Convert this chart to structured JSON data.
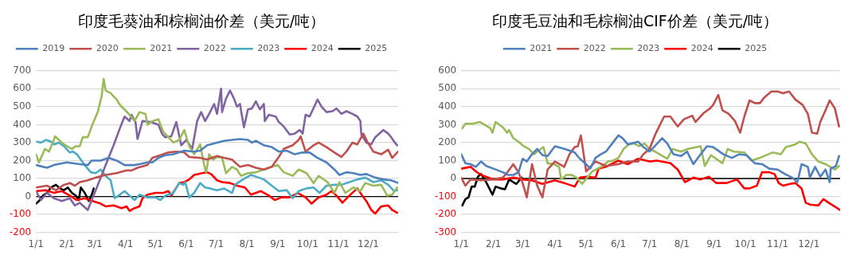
{
  "chart_data": [
    {
      "type": "line",
      "title": "印度毛葵油和棕榈油价差（美元/吨）",
      "legend": "top",
      "grid": "y",
      "xlim": [
        "--01-01",
        "--12-31"
      ],
      "ylim": [
        -200,
        700
      ],
      "yticks": [
        -200,
        -100,
        0,
        100,
        200,
        300,
        400,
        500,
        600,
        700
      ],
      "xticks": [
        {
          "value": "--01-01",
          "label": "1/1"
        },
        {
          "value": "--02-01",
          "label": "2/1"
        },
        {
          "value": "--03-01",
          "label": "3/1"
        },
        {
          "value": "--04-01",
          "label": "4/1"
        },
        {
          "value": "--05-01",
          "label": "5/1"
        },
        {
          "value": "--06-01",
          "label": "6/1"
        },
        {
          "value": "--07-01",
          "label": "7/1"
        },
        {
          "value": "--08-01",
          "label": "8/1"
        },
        {
          "value": "--09-01",
          "label": "9/1"
        },
        {
          "value": "--10-01",
          "label": "10/1"
        },
        {
          "value": "--11-01",
          "label": "11/1"
        },
        {
          "value": "--12-01",
          "label": "12/1"
        }
      ],
      "ref_lines": [
        {
          "axis": "y",
          "value": 0,
          "color": "#000000"
        }
      ],
      "series": [
        {
          "name": "2019",
          "color": "#4f81bd",
          "x": [
            "--01-01",
            "--01-12",
            "--01-19",
            "--02-01",
            "--02-14",
            "--02-22",
            "--02-26",
            "--03-07",
            "--03-15",
            "--03-20",
            "--03-23",
            "--03-31",
            "--04-10",
            "--04-15",
            "--04-23",
            "--04-28",
            "--05-04",
            "--05-11",
            "--05-19",
            "--05-30",
            "--06-09",
            "--06-15",
            "--06-22",
            "--07-02",
            "--07-09",
            "--07-17",
            "--07-25",
            "--08-02",
            "--08-06",
            "--08-10",
            "--08-18",
            "--08-26",
            "--09-02",
            "--09-10",
            "--09-18",
            "--09-26",
            "--10-03",
            "--10-11",
            "--10-20",
            "--10-28",
            "--11-02",
            "--11-09",
            "--11-16",
            "--11-23",
            "--11-29",
            "--12-08",
            "--12-16",
            "--12-24",
            "--12-31"
          ],
          "values": [
            175,
            160,
            175,
            190,
            180,
            175,
            200,
            200,
            215,
            205,
            200,
            175,
            175,
            180,
            190,
            190,
            215,
            230,
            235,
            255,
            250,
            255,
            285,
            300,
            310,
            315,
            320,
            315,
            300,
            310,
            285,
            275,
            250,
            255,
            235,
            245,
            245,
            215,
            190,
            150,
            120,
            135,
            130,
            120,
            125,
            105,
            95,
            90,
            75
          ]
        },
        {
          "name": "2020",
          "color": "#c0504d",
          "x": [
            "--01-01",
            "--01-12",
            "--01-21",
            "--01-29",
            "--02-04",
            "--02-09",
            "--02-14",
            "--02-22",
            "--03-02",
            "--03-12",
            "--03-23",
            "--04-02",
            "--04-07",
            "--04-13",
            "--04-23",
            "--04-28",
            "--05-06",
            "--05-14",
            "--05-22",
            "--05-30",
            "--06-04",
            "--06-15",
            "--06-22",
            "--07-02",
            "--07-09",
            "--07-17",
            "--07-25",
            "--08-02",
            "--08-10",
            "--08-18",
            "--08-26",
            "--09-02",
            "--09-07",
            "--09-16",
            "--09-22",
            "--09-24",
            "--09-29",
            "--10-07",
            "--10-12",
            "--10-20",
            "--10-28",
            "--11-04",
            "--11-09",
            "--11-15",
            "--11-20",
            "--11-24",
            "--11-26",
            "--11-30",
            "--12-06",
            "--12-14",
            "--12-21",
            "--12-25",
            "--12-31"
          ],
          "values": [
            50,
            60,
            35,
            65,
            75,
            60,
            80,
            90,
            105,
            120,
            130,
            145,
            145,
            160,
            175,
            215,
            230,
            245,
            250,
            245,
            220,
            215,
            205,
            225,
            215,
            205,
            165,
            175,
            160,
            150,
            165,
            220,
            265,
            285,
            315,
            335,
            250,
            285,
            300,
            275,
            245,
            220,
            250,
            300,
            290,
            330,
            350,
            305,
            250,
            235,
            260,
            215,
            250
          ]
        },
        {
          "name": "2021",
          "color": "#9bbb59",
          "x": [
            "--01-01",
            "--01-04",
            "--01-10",
            "--01-14",
            "--01-19",
            "--01-20",
            "--01-27",
            "--02-01",
            "--02-06",
            "--02-10",
            "--02-14",
            "--02-17",
            "--02-22",
            "--02-27",
            "--03-04",
            "--03-08",
            "--03-10",
            "--03-12",
            "--03-17",
            "--03-23",
            "--03-27",
            "--03-31",
            "--04-05",
            "--04-10",
            "--04-15",
            "--04-21",
            "--04-23",
            "--04-28",
            "--05-04",
            "--05-09",
            "--05-14",
            "--05-19",
            "--05-25",
            "--05-30",
            "--06-04",
            "--06-09",
            "--06-15",
            "--06-19",
            "--06-21",
            "--06-24",
            "--06-28",
            "--07-02",
            "--07-07",
            "--07-11",
            "--07-17",
            "--07-22",
            "--07-26",
            "--08-02",
            "--08-10",
            "--08-18",
            "--08-26",
            "--09-01",
            "--09-07",
            "--09-16",
            "--09-22",
            "--09-30",
            "--10-07",
            "--10-12",
            "--10-21",
            "--10-28",
            "--11-02",
            "--11-08",
            "--11-16",
            "--11-23",
            "--11-28",
            "--12-06",
            "--12-14",
            "--12-20",
            "--12-25",
            "--12-30"
          ],
          "values": [
            235,
            190,
            265,
            250,
            315,
            335,
            300,
            280,
            265,
            280,
            280,
            330,
            330,
            405,
            470,
            560,
            655,
            590,
            575,
            540,
            505,
            485,
            455,
            420,
            470,
            460,
            400,
            420,
            430,
            360,
            330,
            300,
            315,
            370,
            280,
            235,
            290,
            175,
            135,
            235,
            205,
            220,
            215,
            130,
            165,
            150,
            115,
            130,
            135,
            150,
            165,
            175,
            135,
            115,
            150,
            130,
            75,
            115,
            80,
            20,
            80,
            20,
            50,
            30,
            75,
            60,
            65,
            5,
            10,
            50
          ]
        },
        {
          "name": "2022",
          "color": "#8064a2",
          "x": [
            "--01-02",
            "--01-06",
            "--01-12",
            "--01-19",
            "--01-27",
            "--02-04",
            "--02-09",
            "--02-14",
            "--02-22",
            "--03-02",
            "--03-12",
            "--03-20",
            "--03-27",
            "--03-31",
            "--04-05",
            "--04-07",
            "--04-11",
            "--04-13",
            "--04-18",
            "--04-26",
            "--05-04",
            "--05-08",
            "--05-11",
            "--05-17",
            "--05-22",
            "--05-27",
            "--06-01",
            "--06-07",
            "--06-12",
            "--06-16",
            "--06-20",
            "--06-25",
            "--06-29",
            "--07-02",
            "--07-06",
            "--07-07",
            "--07-11",
            "--07-15",
            "--07-19",
            "--07-22",
            "--07-25",
            "--07-29",
            "--08-02",
            "--08-06",
            "--08-10",
            "--08-14",
            "--08-18",
            "--08-19",
            "--08-23",
            "--08-30",
            "--09-02",
            "--09-07",
            "--09-13",
            "--09-18",
            "--09-23",
            "--09-26",
            "--09-29",
            "--10-03",
            "--10-11",
            "--10-15",
            "--10-20",
            "--10-26",
            "--10-30",
            "--11-04",
            "--11-09",
            "--11-15",
            "--11-20",
            "--11-23",
            "--11-24",
            "--11-29",
            "--12-04",
            "--12-08",
            "--12-16",
            "--12-21",
            "--12-24",
            "--12-27",
            "--12-30"
          ],
          "values": [
            20,
            -20,
            20,
            -10,
            -25,
            -10,
            -50,
            -35,
            -75,
            35,
            175,
            285,
            390,
            445,
            420,
            455,
            415,
            320,
            420,
            415,
            400,
            345,
            330,
            335,
            415,
            285,
            315,
            265,
            420,
            470,
            420,
            470,
            515,
            460,
            600,
            470,
            545,
            590,
            545,
            500,
            515,
            385,
            485,
            490,
            530,
            485,
            515,
            420,
            455,
            445,
            415,
            390,
            345,
            350,
            370,
            350,
            455,
            445,
            540,
            500,
            470,
            475,
            490,
            460,
            475,
            460,
            445,
            420,
            345,
            300,
            290,
            330,
            370,
            350,
            330,
            305,
            285
          ]
        },
        {
          "name": "2023",
          "color": "#4bacc6",
          "x": [
            "--01-02",
            "--01-06",
            "--01-11",
            "--01-16",
            "--01-19",
            "--01-24",
            "--01-29",
            "--02-04",
            "--02-07",
            "--02-11",
            "--02-15",
            "--02-19",
            "--02-25",
            "--03-02",
            "--03-07",
            "--03-12",
            "--03-17",
            "--03-21",
            "--03-25",
            "--03-31",
            "--04-05",
            "--04-10",
            "--04-15",
            "--04-23",
            "--05-01",
            "--05-06",
            "--05-11",
            "--05-19",
            "--05-25",
            "--05-29",
            "--05-31",
            "--06-04",
            "--06-09",
            "--06-15",
            "--06-20",
            "--06-25",
            "--07-02",
            "--07-09",
            "--07-17",
            "--07-20",
            "--07-28",
            "--08-05",
            "--08-13",
            "--08-18",
            "--08-26",
            "--09-02",
            "--09-10",
            "--09-16",
            "--09-22",
            "--09-30",
            "--10-07",
            "--10-13",
            "--10-20",
            "--10-28",
            "--11-04",
            "--11-12",
            "--11-20",
            "--11-28",
            "--12-06",
            "--12-14",
            "--12-21",
            "--12-27",
            "--12-30"
          ],
          "values": [
            305,
            300,
            315,
            305,
            290,
            300,
            280,
            245,
            250,
            235,
            205,
            175,
            135,
            130,
            150,
            115,
            90,
            -10,
            5,
            30,
            5,
            -20,
            10,
            -5,
            -5,
            -20,
            5,
            20,
            75,
            65,
            80,
            -5,
            20,
            75,
            50,
            45,
            35,
            45,
            20,
            65,
            95,
            120,
            105,
            95,
            60,
            30,
            35,
            -10,
            30,
            45,
            50,
            20,
            60,
            65,
            65,
            80,
            95,
            105,
            80,
            90,
            65,
            30,
            35
          ]
        },
        {
          "name": "2024",
          "color": "#ff0000",
          "x": [
            "--01-02",
            "--01-11",
            "--01-19",
            "--01-27",
            "--02-04",
            "--02-11",
            "--02-19",
            "--02-27",
            "--03-07",
            "--03-12",
            "--03-20",
            "--03-28",
            "--04-02",
            "--04-05",
            "--04-10",
            "--04-15",
            "--04-18",
            "--04-23",
            "--05-01",
            "--05-09",
            "--05-14",
            "--05-17",
            "--05-25",
            "--05-30",
            "--06-04",
            "--06-09",
            "--06-17",
            "--06-22",
            "--06-26",
            "--07-02",
            "--07-07",
            "--07-15",
            "--07-22",
            "--07-30",
            "--08-05",
            "--08-15",
            "--08-23",
            "--08-29",
            "--09-05",
            "--09-13",
            "--09-21",
            "--09-29",
            "--10-05",
            "--10-12",
            "--10-20",
            "--10-25",
            "--10-30",
            "--11-05",
            "--11-12",
            "--11-20",
            "--11-25",
            "--11-29",
            "--12-04",
            "--12-08",
            "--12-14",
            "--12-21",
            "--12-25",
            "--12-30"
          ],
          "values": [
            30,
            35,
            20,
            30,
            5,
            -20,
            -10,
            -25,
            -40,
            -55,
            -50,
            -65,
            -55,
            -80,
            -65,
            -55,
            -10,
            10,
            20,
            20,
            30,
            5,
            75,
            80,
            95,
            120,
            130,
            135,
            125,
            90,
            80,
            75,
            60,
            50,
            10,
            30,
            5,
            -20,
            -5,
            -5,
            20,
            -5,
            -40,
            -5,
            10,
            30,
            5,
            -35,
            5,
            45,
            5,
            -25,
            -75,
            -95,
            -55,
            -50,
            -75,
            -90
          ]
        },
        {
          "name": "2025",
          "color": "#000000",
          "x": [
            "--01-01",
            "--01-04",
            "--01-08",
            "--01-12",
            "--01-16",
            "--01-21",
            "--01-25",
            "--01-29",
            "--02-02",
            "--02-06",
            "--02-10",
            "--02-13",
            "--02-15",
            "--02-19",
            "--02-23",
            "--02-26",
            "--02-28"
          ],
          "values": [
            -40,
            -25,
            5,
            20,
            50,
            65,
            45,
            35,
            50,
            20,
            5,
            -20,
            50,
            20,
            -25,
            10,
            45
          ]
        }
      ]
    },
    {
      "type": "line",
      "title": "印度毛豆油和毛棕榈油CIF价差（美元/吨）",
      "legend": "top",
      "grid": "y",
      "xlim": [
        "--01-01",
        "--12-31"
      ],
      "ylim": [
        -300,
        600
      ],
      "yticks": [
        -300,
        -200,
        -100,
        0,
        100,
        200,
        300,
        400,
        500,
        600
      ],
      "xticks": [
        {
          "value": "--01-01",
          "label": "1/1"
        },
        {
          "value": "--02-01",
          "label": "2/1"
        },
        {
          "value": "--03-01",
          "label": "3/1"
        },
        {
          "value": "--04-01",
          "label": "4/1"
        },
        {
          "value": "--05-01",
          "label": "5/1"
        },
        {
          "value": "--06-01",
          "label": "6/1"
        },
        {
          "value": "--07-01",
          "label": "7/1"
        },
        {
          "value": "--08-01",
          "label": "8/1"
        },
        {
          "value": "--09-01",
          "label": "9/1"
        },
        {
          "value": "--10-01",
          "label": "10/1"
        },
        {
          "value": "--11-01",
          "label": "11/1"
        },
        {
          "value": "--12-01",
          "label": "12/1"
        }
      ],
      "ref_lines": [
        {
          "axis": "y",
          "value": 0,
          "color": "#000000"
        }
      ],
      "series": [
        {
          "name": "2021",
          "color": "#4f81bd",
          "x": [
            "--01-01",
            "--01-05",
            "--01-10",
            "--01-15",
            "--01-20",
            "--01-25",
            "--02-01",
            "--02-10",
            "--02-15",
            "--02-20",
            "--02-25",
            "--03-01",
            "--03-05",
            "--03-10",
            "--03-15",
            "--03-20",
            "--03-25",
            "--04-01",
            "--04-10",
            "--04-20",
            "--04-25",
            "--05-01",
            "--05-05",
            "--05-10",
            "--05-15",
            "--05-20",
            "--06-01",
            "--06-05",
            "--06-10",
            "--06-20",
            "--06-25",
            "--07-01",
            "--07-06",
            "--07-13",
            "--07-18",
            "--07-24",
            "--07-31",
            "--08-06",
            "--08-12",
            "--08-19",
            "--08-25",
            "--08-31",
            "--09-10",
            "--09-18",
            "--09-25",
            "--10-02",
            "--10-10",
            "--10-17",
            "--10-24",
            "--11-01",
            "--11-08",
            "--11-15",
            "--11-20",
            "--11-24",
            "--11-30",
            "--12-02",
            "--12-07",
            "--12-12",
            "--12-17",
            "--12-21",
            "--12-22",
            "--12-27",
            "--12-30"
          ],
          "values": [
            135,
            85,
            80,
            65,
            95,
            70,
            55,
            35,
            20,
            20,
            35,
            110,
            95,
            135,
            165,
            130,
            125,
            180,
            165,
            145,
            110,
            80,
            55,
            115,
            135,
            150,
            240,
            225,
            190,
            205,
            175,
            150,
            180,
            225,
            195,
            135,
            125,
            150,
            80,
            135,
            180,
            175,
            135,
            115,
            135,
            130,
            85,
            80,
            55,
            50,
            25,
            5,
            -20,
            80,
            65,
            5,
            65,
            10,
            50,
            -20,
            55,
            70,
            125
          ]
        },
        {
          "name": "2022",
          "color": "#c0504d",
          "x": [
            "--01-01",
            "--01-05",
            "--01-10",
            "--01-20",
            "--02-01",
            "--02-10",
            "--02-15",
            "--02-20",
            "--02-25",
            "--03-01",
            "--03-05",
            "--03-10",
            "--03-15",
            "--03-20",
            "--03-25",
            "--04-01",
            "--04-10",
            "--04-15",
            "--04-20",
            "--04-23",
            "--04-26",
            "--05-01",
            "--05-10",
            "--05-20",
            "--06-01",
            "--06-10",
            "--06-20",
            "--06-25",
            "--07-01",
            "--07-06",
            "--07-11",
            "--07-15",
            "--07-21",
            "--07-28",
            "--08-03",
            "--08-11",
            "--08-14",
            "--08-22",
            "--08-28",
            "--08-31",
            "--09-05",
            "--09-09",
            "--09-15",
            "--09-21",
            "--09-26",
            "--09-30",
            "--10-05",
            "--10-10",
            "--10-15",
            "--10-19",
            "--10-26",
            "--11-01",
            "--11-06",
            "--11-12",
            "--11-18",
            "--11-25",
            "--11-30",
            "--12-04",
            "--12-09",
            "--12-12",
            "--12-17",
            "--12-21",
            "--12-26",
            "--12-30"
          ],
          "values": [
            5,
            -40,
            -5,
            -10,
            -5,
            5,
            40,
            80,
            35,
            -25,
            -105,
            80,
            -40,
            -105,
            50,
            95,
            65,
            135,
            175,
            180,
            240,
            40,
            95,
            70,
            80,
            95,
            95,
            135,
            165,
            240,
            300,
            345,
            345,
            290,
            330,
            350,
            315,
            365,
            390,
            410,
            465,
            380,
            360,
            320,
            255,
            345,
            435,
            420,
            420,
            450,
            485,
            485,
            475,
            485,
            440,
            410,
            360,
            255,
            250,
            315,
            380,
            435,
            390,
            290
          ]
        },
        {
          "name": "2023",
          "color": "#9bbb59",
          "x": [
            "--01-02",
            "--01-05",
            "--01-12",
            "--01-19",
            "--01-29",
            "--01-31",
            "--02-03",
            "--02-10",
            "--02-14",
            "--02-16",
            "--02-20",
            "--02-25",
            "--03-02",
            "--03-07",
            "--03-12",
            "--03-14",
            "--03-21",
            "--03-25",
            "--03-31",
            "--04-05",
            "--04-07",
            "--04-12",
            "--04-17",
            "--04-22",
            "--04-27",
            "--05-02",
            "--05-07",
            "--05-12",
            "--05-17",
            "--05-22",
            "--05-27",
            "--06-01",
            "--06-06",
            "--06-11",
            "--06-16",
            "--06-21",
            "--06-26",
            "--07-01",
            "--07-06",
            "--07-18",
            "--07-23",
            "--07-31",
            "--08-07",
            "--08-19",
            "--08-23",
            "--08-29",
            "--09-09",
            "--09-14",
            "--09-20",
            "--09-30",
            "--10-07",
            "--10-15",
            "--10-19",
            "--10-27",
            "--11-04",
            "--11-09",
            "--11-18",
            "--11-22",
            "--11-28",
            "--12-04",
            "--12-10",
            "--12-17",
            "--12-26",
            "--12-30"
          ],
          "values": [
            280,
            305,
            305,
            315,
            280,
            255,
            315,
            285,
            255,
            270,
            225,
            205,
            180,
            165,
            135,
            145,
            175,
            85,
            80,
            65,
            -5,
            20,
            20,
            5,
            -30,
            5,
            40,
            55,
            70,
            95,
            100,
            115,
            165,
            190,
            195,
            180,
            195,
            165,
            150,
            110,
            165,
            150,
            165,
            180,
            70,
            130,
            85,
            165,
            150,
            145,
            100,
            115,
            125,
            145,
            135,
            175,
            190,
            205,
            195,
            135,
            95,
            80,
            50,
            70
          ]
        },
        {
          "name": "2024",
          "color": "#ff0000",
          "x": [
            "--01-01",
            "--01-10",
            "--01-15",
            "--01-20",
            "--02-01",
            "--02-10",
            "--02-20",
            "--03-01",
            "--03-10",
            "--03-20",
            "--04-01",
            "--04-10",
            "--04-20",
            "--04-25",
            "--05-01",
            "--05-10",
            "--05-13",
            "--05-20",
            "--06-01",
            "--06-10",
            "--06-20",
            "--07-01",
            "--07-08",
            "--07-21",
            "--07-28",
            "--08-04",
            "--08-12",
            "--08-19",
            "--08-27",
            "--09-03",
            "--09-13",
            "--09-23",
            "--09-30",
            "--10-05",
            "--10-12",
            "--10-17",
            "--10-24",
            "--10-29",
            "--11-02",
            "--11-06",
            "--11-13",
            "--11-18",
            "--11-24",
            "--11-28",
            "--12-02",
            "--12-10",
            "--12-15",
            "--12-20",
            "--12-27",
            "--12-31"
          ],
          "values": [
            55,
            65,
            40,
            20,
            -5,
            -5,
            5,
            -5,
            -10,
            -30,
            -10,
            -25,
            -45,
            5,
            10,
            5,
            55,
            65,
            100,
            80,
            110,
            95,
            100,
            85,
            50,
            -20,
            5,
            -5,
            10,
            -25,
            -25,
            -5,
            -55,
            -55,
            -40,
            35,
            35,
            25,
            -25,
            -40,
            -30,
            -25,
            -55,
            -135,
            -145,
            -150,
            -115,
            -135,
            -160,
            -175
          ]
        },
        {
          "name": "2025",
          "color": "#000000",
          "x": [
            "--01-02",
            "--01-05",
            "--01-08",
            "--01-11",
            "--01-14",
            "--01-17",
            "--01-20",
            "--01-24",
            "--01-28",
            "--01-31",
            "--02-03",
            "--02-08",
            "--02-12",
            "--02-16",
            "--02-20",
            "--02-23",
            "--02-28"
          ],
          "values": [
            -150,
            -115,
            -105,
            -45,
            -45,
            10,
            25,
            -10,
            -55,
            -90,
            -45,
            -55,
            -60,
            -5,
            -20,
            -30,
            5
          ]
        }
      ]
    }
  ]
}
